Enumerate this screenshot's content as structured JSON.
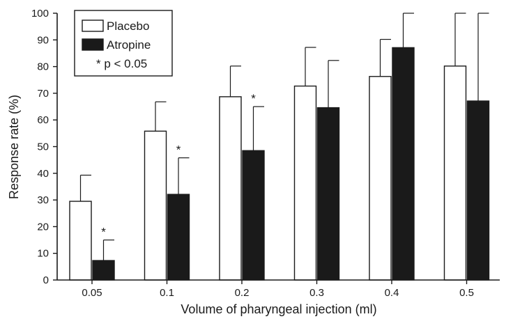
{
  "chart_data": {
    "type": "bar",
    "xlabel": "Volume of pharyngeal injection (ml)",
    "ylabel": "Response rate (%)",
    "ylim": [
      0,
      100
    ],
    "yticks": [
      0,
      10,
      20,
      30,
      40,
      50,
      60,
      70,
      80,
      90,
      100
    ],
    "categories": [
      "0.05",
      "0.1",
      "0.2",
      "0.3",
      "0.4",
      "0.5"
    ],
    "series": [
      {
        "name": "Placebo",
        "fill": "#ffffff",
        "values": [
          29.5,
          55.8,
          68.7,
          72.7,
          76.3,
          80.2
        ],
        "error_upper": [
          39.3,
          66.8,
          80.2,
          87.2,
          90.2,
          100
        ]
      },
      {
        "name": "Atropine",
        "fill": "#1a1a1a",
        "values": [
          7.3,
          32.1,
          48.5,
          64.6,
          87.1,
          67.1
        ],
        "error_upper": [
          15.0,
          45.8,
          65.0,
          82.3,
          100,
          100
        ]
      }
    ],
    "significance_marker": "*",
    "significant_categories": [
      "0.05",
      "0.1",
      "0.2"
    ],
    "legend": {
      "placement": "top-left",
      "entries": [
        "Placebo",
        "Atropine"
      ],
      "note": "* p < 0.05"
    },
    "grid": false
  }
}
